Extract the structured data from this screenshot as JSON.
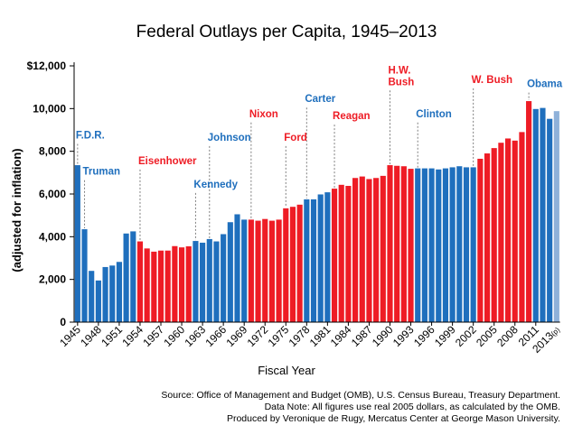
{
  "colors": {
    "democrat": "#1f6fbd",
    "republican": "#ee1c25",
    "estimate": "#8fb1d9",
    "axis": "#000000",
    "dash": "#7f7f7f"
  },
  "chart_data": {
    "type": "bar",
    "title": "Federal Outlays per Capita, 1945–2013",
    "xlabel": "Fiscal Year",
    "ylabel": "(adjusted for inflation)",
    "ylim": [
      0,
      12000
    ],
    "ytick_values": [
      0,
      2000,
      4000,
      6000,
      8000,
      10000,
      12000
    ],
    "ytick_labels": [
      "0",
      "2,000",
      "4,000",
      "6,000",
      "8,000",
      "10,000",
      "$12,000"
    ],
    "xtick_labels": [
      "1945",
      "1948",
      "1951",
      "1954",
      "1957",
      "1960",
      "1963",
      "1966",
      "1969",
      "1972",
      "1975",
      "1978",
      "1981",
      "1984",
      "1987",
      "1990",
      "1993",
      "1996",
      "1999",
      "2002",
      "2005",
      "2008",
      "2011"
    ],
    "xtick_last": {
      "label": "2013",
      "suffix": "(p)"
    },
    "years": [
      1945,
      1946,
      1947,
      1948,
      1949,
      1950,
      1951,
      1952,
      1953,
      1954,
      1955,
      1956,
      1957,
      1958,
      1959,
      1960,
      1961,
      1962,
      1963,
      1964,
      1965,
      1966,
      1967,
      1968,
      1969,
      1970,
      1971,
      1972,
      1973,
      1974,
      1975,
      1976,
      1977,
      1978,
      1979,
      1980,
      1981,
      1982,
      1983,
      1984,
      1985,
      1986,
      1987,
      1988,
      1989,
      1990,
      1991,
      1992,
      1993,
      1994,
      1995,
      1996,
      1997,
      1998,
      1999,
      2000,
      2001,
      2002,
      2003,
      2004,
      2005,
      2006,
      2007,
      2008,
      2009,
      2010,
      2011,
      2012,
      2013
    ],
    "values": [
      7350,
      4350,
      2400,
      1950,
      2580,
      2650,
      2820,
      4150,
      4250,
      3780,
      3450,
      3300,
      3350,
      3350,
      3560,
      3500,
      3550,
      3800,
      3720,
      3890,
      3780,
      4120,
      4680,
      5050,
      4800,
      4800,
      4750,
      4830,
      4750,
      4800,
      5330,
      5400,
      5500,
      5750,
      5750,
      5980,
      6080,
      6250,
      6430,
      6380,
      6750,
      6820,
      6700,
      6750,
      6850,
      7350,
      7320,
      7300,
      7180,
      7200,
      7200,
      7200,
      7150,
      7200,
      7250,
      7300,
      7250,
      7250,
      7650,
      7900,
      8150,
      8400,
      8600,
      8500,
      8900,
      10350,
      9980,
      10030,
      9520
    ],
    "party": [
      "D",
      "D",
      "D",
      "D",
      "D",
      "D",
      "D",
      "D",
      "D",
      "R",
      "R",
      "R",
      "R",
      "R",
      "R",
      "R",
      "R",
      "D",
      "D",
      "D",
      "D",
      "D",
      "D",
      "D",
      "D",
      "R",
      "R",
      "R",
      "R",
      "R",
      "R",
      "R",
      "R",
      "D",
      "D",
      "D",
      "D",
      "R",
      "R",
      "R",
      "R",
      "R",
      "R",
      "R",
      "R",
      "R",
      "R",
      "R",
      "R",
      "D",
      "D",
      "D",
      "D",
      "D",
      "D",
      "D",
      "D",
      "D",
      "R",
      "R",
      "R",
      "R",
      "R",
      "R",
      "R",
      "R",
      "D",
      "D",
      "D"
    ],
    "estimate_year": 2013,
    "estimate_value": 9880,
    "presidents": [
      {
        "name": "F.D.R.",
        "year": 1945,
        "party": "D"
      },
      {
        "name": "Truman",
        "year": 1946,
        "party": "D"
      },
      {
        "name": "Eisenhower",
        "year": 1954,
        "party": "R"
      },
      {
        "name": "Kennedy",
        "year": 1962,
        "party": "D"
      },
      {
        "name": "Johnson",
        "year": 1964,
        "party": "D"
      },
      {
        "name": "Nixon",
        "year": 1970,
        "party": "R"
      },
      {
        "name": "Ford",
        "year": 1975,
        "party": "R"
      },
      {
        "name": "Carter",
        "year": 1978,
        "party": "D"
      },
      {
        "name": "Reagan",
        "year": 1982,
        "party": "R"
      },
      {
        "name": "H.W.",
        "name2": "Bush",
        "year": 1990,
        "party": "R"
      },
      {
        "name": "Clinton",
        "year": 1994,
        "party": "D"
      },
      {
        "name": "W. Bush",
        "year": 2002,
        "party": "R"
      },
      {
        "name": "Obama",
        "year": 2010,
        "party": "D"
      }
    ]
  },
  "source": {
    "line1": "Source: Office of Management and Budget (OMB), U.S. Census Bureau, Treasury Department.",
    "line2": "Data Note: All figures use real 2005 dollars, as calculated by the OMB.",
    "line3": "Produced by Veronique de Rugy, Mercatus Center at George Mason University."
  }
}
